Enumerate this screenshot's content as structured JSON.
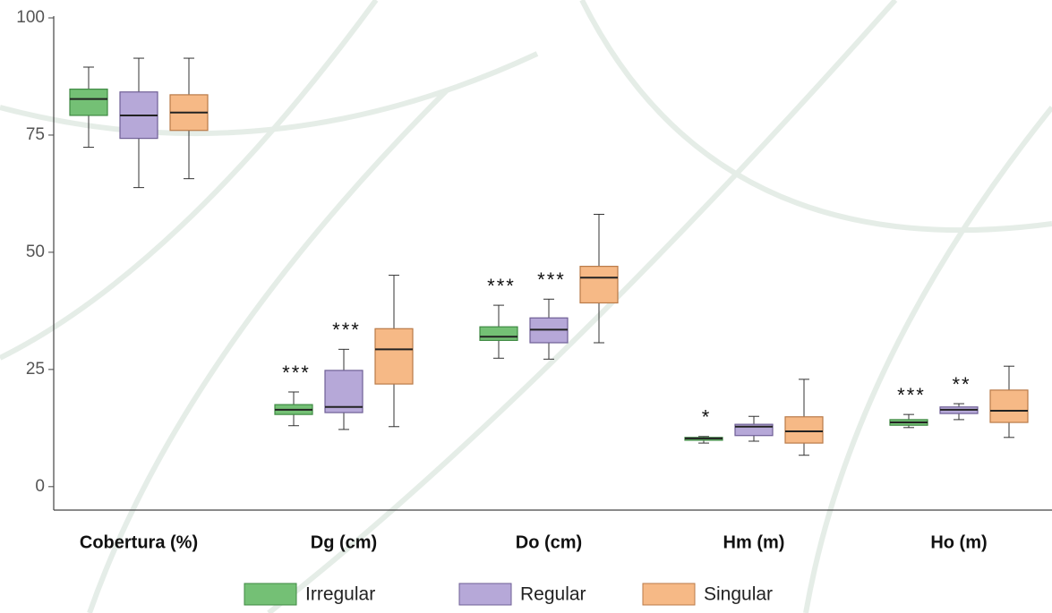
{
  "chart_data": {
    "type": "box",
    "categories": [
      "Cobertura (%)",
      "Dg (cm)",
      "Do (cm)",
      "Hm (m)",
      "Ho (m)"
    ],
    "ylim": [
      -5,
      100
    ],
    "yticks": [
      0,
      25,
      50,
      75,
      100
    ],
    "series": [
      {
        "name": "Irregular",
        "color": "#74c075",
        "edge": "#3f8a43",
        "values": [
          {
            "min": 72.4,
            "q1": 79.2,
            "median": 82.7,
            "q3": 84.8,
            "max": 89.5
          },
          {
            "min": 13,
            "q1": 15.4,
            "median": 16.4,
            "q3": 17.5,
            "max": 20.2
          },
          {
            "min": 27.4,
            "q1": 31.2,
            "median": 32,
            "q3": 34.1,
            "max": 38.7
          },
          {
            "min": 9.3,
            "q1": 9.9,
            "median": 10.3,
            "q3": 10.5,
            "max": 10.7
          },
          {
            "min": 12.6,
            "q1": 13.1,
            "median": 13.7,
            "q3": 14.3,
            "max": 15.4
          }
        ],
        "labels": [
          null,
          "***",
          "***",
          "*",
          "***"
        ]
      },
      {
        "name": "Regular",
        "color": "#b6a8d8",
        "edge": "#6f5f96",
        "values": [
          {
            "min": 63.8,
            "q1": 74.3,
            "median": 79.2,
            "q3": 84.2,
            "max": 91.4
          },
          {
            "min": 12.2,
            "q1": 15.8,
            "median": 17,
            "q3": 24.8,
            "max": 29.3
          },
          {
            "min": 27.2,
            "q1": 30.7,
            "median": 33.5,
            "q3": 36,
            "max": 40
          },
          {
            "min": 9.7,
            "q1": 10.9,
            "median": 12.8,
            "q3": 13.3,
            "max": 15
          },
          {
            "min": 14.3,
            "q1": 15.6,
            "median": 16.4,
            "q3": 17,
            "max": 17.7
          }
        ],
        "labels": [
          null,
          "***",
          "***",
          null,
          "**"
        ]
      },
      {
        "name": "Singular",
        "color": "#f6b986",
        "edge": "#b97a48",
        "values": [
          {
            "min": 65.7,
            "q1": 76,
            "median": 79.8,
            "q3": 83.6,
            "max": 91.4
          },
          {
            "min": 12.8,
            "q1": 21.9,
            "median": 29.3,
            "q3": 33.7,
            "max": 45.1
          },
          {
            "min": 30.7,
            "q1": 39.2,
            "median": 44.6,
            "q3": 47,
            "max": 58.1
          },
          {
            "min": 6.7,
            "q1": 9.3,
            "median": 11.8,
            "q3": 14.9,
            "max": 22.9
          },
          {
            "min": 10.5,
            "q1": 13.7,
            "median": 16.2,
            "q3": 20.6,
            "max": 25.7
          }
        ],
        "labels": [
          null,
          null,
          null,
          null,
          null
        ]
      }
    ]
  }
}
